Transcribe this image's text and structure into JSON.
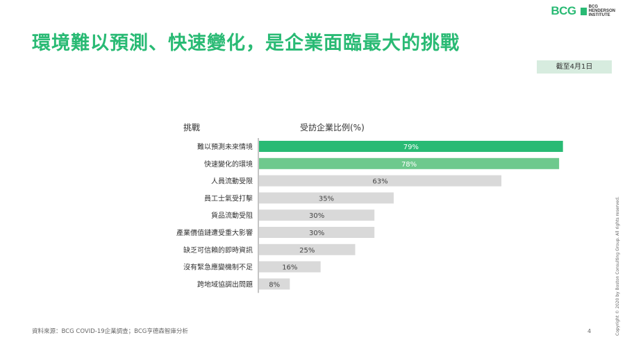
{
  "brand": {
    "logo_text": "BCG",
    "institute_line1": "BCG",
    "institute_line2": "HENDERSON",
    "institute_line3": "INSTITUTE",
    "accent": "#29ba74"
  },
  "title": "環境難以預測、快速變化，是企業面臨最大的挑戰",
  "date_badge": "截至4月1日",
  "footer": {
    "source": "資料來源：BCG COVID-19企業調查；BCG亨德森智庫分析",
    "page_number": "4",
    "copyright": "Copyright © 2020 by Boston Consulting Group. All rights reserved."
  },
  "chart_data": {
    "type": "bar",
    "orientation": "horizontal",
    "category_header": "挑戰",
    "value_header": "受訪企業比例(%)",
    "categories": [
      "難以預測未來情境",
      "快速變化的環境",
      "人員流動受限",
      "員工士氣受打擊",
      "貨品流動受阻",
      "產業價值鏈遭受重大影響",
      "缺乏可信賴的即時資訊",
      "沒有緊急應變機制不足",
      "跨地域協調出問題"
    ],
    "values": [
      79,
      78,
      63,
      35,
      30,
      30,
      25,
      16,
      8
    ],
    "data_labels": [
      "79%",
      "78%",
      "63%",
      "35%",
      "30%",
      "30%",
      "25%",
      "16%",
      "8%"
    ],
    "xlim": [
      0,
      100
    ],
    "colors": [
      "#29ba74",
      "#6ec98d",
      "#d9d9d9",
      "#d9d9d9",
      "#d9d9d9",
      "#d9d9d9",
      "#d9d9d9",
      "#d9d9d9",
      "#d9d9d9"
    ],
    "label_colors": [
      "#ffffff",
      "#ffffff",
      "#444444",
      "#444444",
      "#444444",
      "#444444",
      "#444444",
      "#444444",
      "#444444"
    ],
    "grid": false
  }
}
